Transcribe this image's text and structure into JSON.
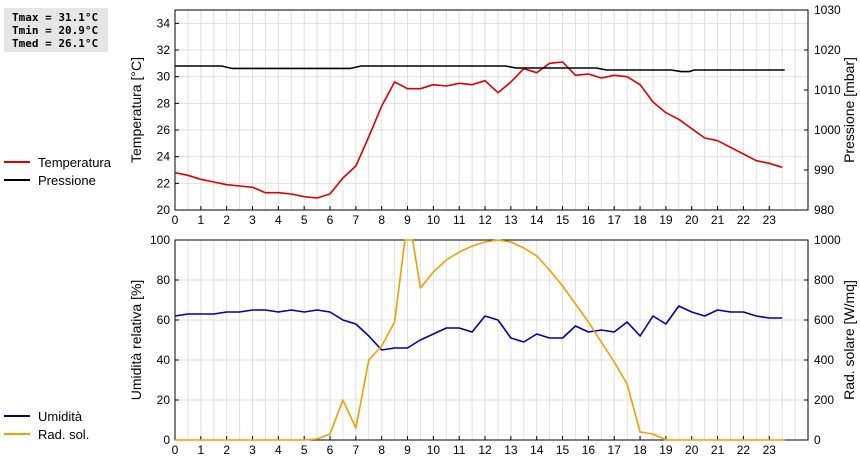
{
  "stats": {
    "tmax": "Tmax = 31.1°C",
    "tmin": "Tmin = 20.9°C",
    "tmed": "Tmed = 26.1°C"
  },
  "legend_top": [
    {
      "label": "Temperatura",
      "color": "#dd0000"
    },
    {
      "label": "Pressione",
      "color": "#000000"
    }
  ],
  "legend_bottom": [
    {
      "label": "Umidità",
      "color": "#0000aa"
    },
    {
      "label": "Rad. sol.",
      "color": "#f0a000"
    }
  ],
  "chart_data": [
    {
      "type": "line",
      "ylabel_left": "Temperatura [°C]",
      "ylabel_right": "Pressione [mbar]",
      "xlim": [
        0,
        24.5
      ],
      "ylim_left": [
        20,
        35
      ],
      "ylim_right": [
        980,
        1030
      ],
      "x_ticks": [
        0,
        1,
        2,
        3,
        4,
        5,
        6,
        7,
        8,
        9,
        10,
        11,
        12,
        13,
        14,
        15,
        16,
        17,
        18,
        19,
        20,
        21,
        22,
        23
      ],
      "y_ticks_left": [
        20,
        22,
        24,
        26,
        28,
        30,
        32,
        34
      ],
      "y_ticks_right": [
        980,
        990,
        1000,
        1010,
        1020,
        1030
      ],
      "grid": true,
      "series": [
        {
          "name": "Temperatura",
          "color": "#dd0000",
          "axis": "left",
          "x": [
            0,
            0.5,
            1,
            1.5,
            2,
            2.5,
            3,
            3.5,
            4,
            4.5,
            5,
            5.5,
            6,
            6.5,
            7,
            7.5,
            8,
            8.5,
            9,
            9.5,
            10,
            10.5,
            11,
            11.5,
            12,
            12.5,
            13,
            13.5,
            14,
            14.5,
            15,
            15.5,
            16,
            16.5,
            17,
            17.5,
            18,
            18.5,
            19,
            19.5,
            20,
            20.5,
            21,
            21.5,
            22,
            22.5,
            23,
            23.5
          ],
          "y": [
            22.8,
            22.6,
            22.3,
            22.1,
            21.9,
            21.8,
            21.7,
            21.3,
            21.3,
            21.2,
            21.0,
            20.9,
            21.2,
            22.4,
            23.3,
            25.5,
            27.8,
            29.6,
            29.1,
            29.1,
            29.4,
            29.3,
            29.5,
            29.4,
            29.7,
            28.8,
            29.6,
            30.6,
            30.3,
            31.0,
            31.1,
            30.1,
            30.2,
            29.9,
            30.1,
            30.0,
            29.4,
            28.1,
            27.3,
            26.8,
            26.1,
            25.4,
            25.2,
            24.7,
            24.2,
            23.7,
            23.5,
            23.2
          ]
        },
        {
          "name": "Pressione",
          "color": "#000000",
          "axis": "right",
          "x": [
            0,
            1.8,
            2.2,
            6.8,
            7.2,
            12.8,
            13.2,
            16.3,
            16.7,
            19.2,
            19.6,
            19.9,
            20.1,
            23.6
          ],
          "y": [
            1016.0,
            1016.0,
            1015.4,
            1015.4,
            1016.0,
            1016.0,
            1015.5,
            1015.5,
            1015.0,
            1015.0,
            1014.6,
            1014.6,
            1015.0,
            1015.0
          ]
        }
      ]
    },
    {
      "type": "line",
      "ylabel_left": "Umidità relativa [%]",
      "ylabel_right": "Rad. solare [W/mq]",
      "xlim": [
        0,
        24.5
      ],
      "ylim_left": [
        0,
        100
      ],
      "ylim_right": [
        0,
        1000
      ],
      "x_ticks": [
        0,
        1,
        2,
        3,
        4,
        5,
        6,
        7,
        8,
        9,
        10,
        11,
        12,
        13,
        14,
        15,
        16,
        17,
        18,
        19,
        20,
        21,
        22,
        23
      ],
      "y_ticks_left": [
        0,
        20,
        40,
        60,
        80,
        100
      ],
      "y_ticks_right": [
        0,
        200,
        400,
        600,
        800,
        1000
      ],
      "grid": true,
      "series": [
        {
          "name": "Umidità",
          "color": "#0000aa",
          "axis": "left",
          "x": [
            0,
            0.5,
            1,
            1.5,
            2,
            2.5,
            3,
            3.5,
            4,
            4.5,
            5,
            5.5,
            6,
            6.5,
            7,
            7.5,
            8,
            8.5,
            9,
            9.5,
            10,
            10.5,
            11,
            11.5,
            12,
            12.5,
            13,
            13.5,
            14,
            14.5,
            15,
            15.5,
            16,
            16.5,
            17,
            17.5,
            18,
            18.5,
            19,
            19.5,
            20,
            20.5,
            21,
            21.5,
            22,
            22.5,
            23,
            23.5
          ],
          "y": [
            62,
            63,
            63,
            63,
            64,
            64,
            65,
            65,
            64,
            65,
            64,
            65,
            64,
            60,
            58,
            52,
            45,
            46,
            46,
            50,
            53,
            56,
            56,
            54,
            62,
            60,
            51,
            49,
            53,
            51,
            51,
            57,
            54,
            55,
            54,
            59,
            52,
            62,
            58,
            67,
            64,
            62,
            65,
            64,
            64,
            62,
            61,
            61
          ]
        },
        {
          "name": "Rad. sol.",
          "color": "#f0a000",
          "axis": "right",
          "x": [
            0,
            1,
            2,
            3,
            4,
            5,
            5.5,
            6,
            6.5,
            7,
            7.5,
            8,
            8.5,
            8.9,
            9.2,
            9.5,
            10,
            10.5,
            11,
            11.5,
            12,
            12.5,
            13,
            13.5,
            14,
            14.5,
            15,
            15.5,
            16,
            16.5,
            17,
            17.5,
            18,
            18.5,
            19,
            19.5,
            20,
            21,
            22,
            23,
            23.6
          ],
          "y": [
            0,
            0,
            0,
            0,
            0,
            0,
            5,
            30,
            200,
            60,
            400,
            470,
            590,
            1000,
            1000,
            760,
            840,
            900,
            940,
            970,
            990,
            1000,
            990,
            960,
            920,
            850,
            770,
            680,
            590,
            490,
            390,
            280,
            40,
            30,
            0,
            0,
            0,
            0,
            0,
            0,
            0
          ]
        }
      ]
    }
  ]
}
